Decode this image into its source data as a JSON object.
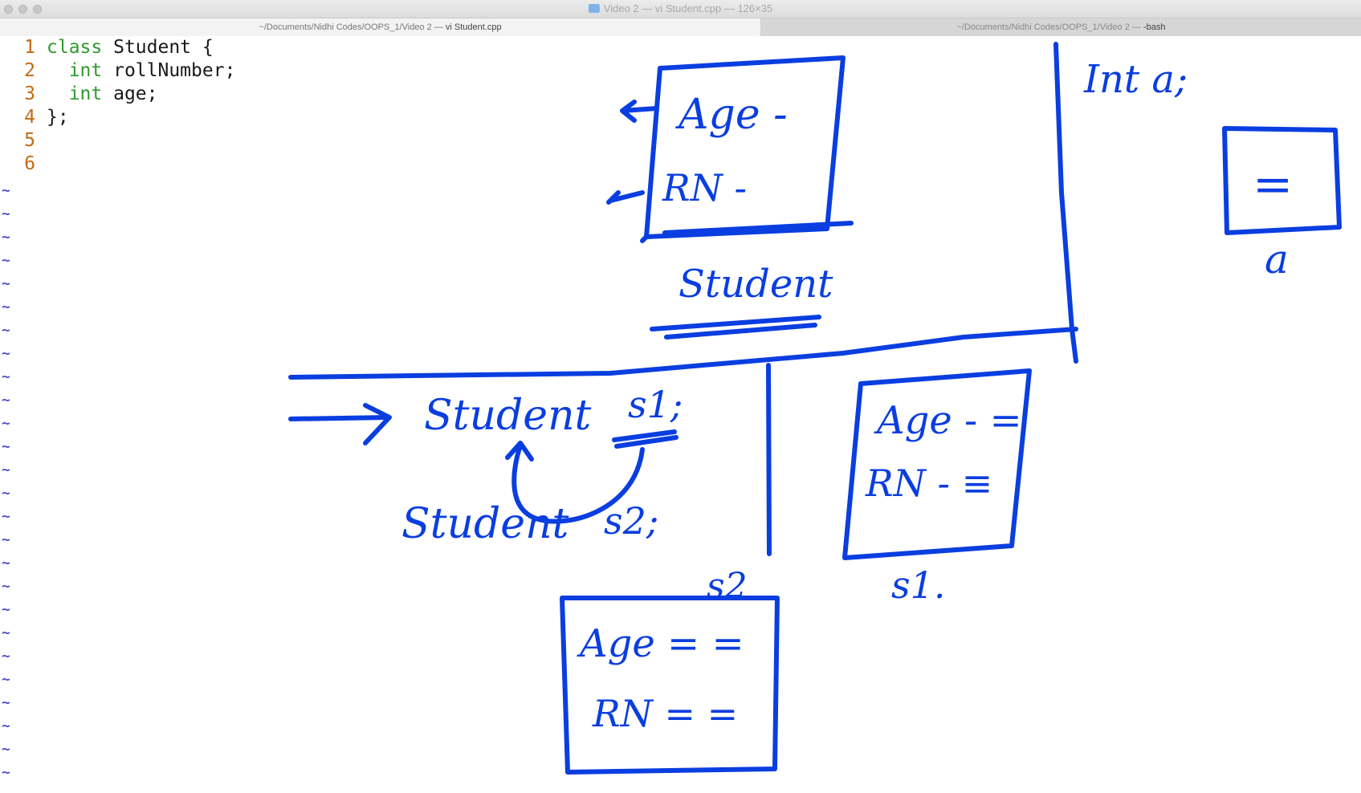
{
  "window": {
    "title": "Video 2 — vi Student.cpp — 126×35",
    "tabs": [
      {
        "label_prefix": "~/Documents/Nidhi Codes/OOPS_1/Video 2 — ",
        "label_cmd": "vi Student.cpp"
      },
      {
        "label_prefix": "~/Documents/Nidhi Codes/OOPS_1/Video 2 — ",
        "label_cmd": "-bash"
      }
    ]
  },
  "editor": {
    "lines": [
      {
        "num": "1",
        "kw": "class",
        "rest": " Student {"
      },
      {
        "num": "2",
        "kw": "  int",
        "rest": " rollNumber;"
      },
      {
        "num": "3",
        "kw": "  int",
        "rest": " age;"
      },
      {
        "num": "4",
        "kw": "",
        "rest": "};"
      },
      {
        "num": "5",
        "kw": "",
        "rest": ""
      },
      {
        "num": "6",
        "kw": "",
        "rest": ""
      }
    ],
    "tilde": "~"
  },
  "annotations": {
    "class_box": {
      "age": "Age -",
      "rn": "RN -",
      "label": "Student"
    },
    "int_decl": {
      "text": "Int a;",
      "box_value": "=",
      "label": "a"
    },
    "decl_s1": {
      "type": "Student",
      "name": "s1;"
    },
    "decl_s2": {
      "type": "Student",
      "name": "s2;"
    },
    "box_s1": {
      "age": "Age - =",
      "rn": "RN - ≡",
      "label": "s1."
    },
    "box_s2": {
      "label": "s2",
      "age": "Age = =",
      "rn": "RN = ="
    }
  },
  "colors": {
    "ink": "#0a3ee0",
    "line_number": "#c46a14",
    "keyword": "#2f9a2f",
    "tilde": "#5555cc"
  }
}
